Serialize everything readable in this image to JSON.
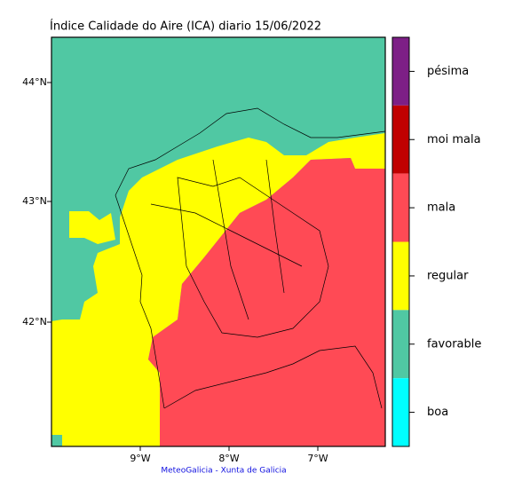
{
  "title": "Índice Calidade do Aire (ICA) diario 15/06/2022",
  "lat_labels": [
    "44°N",
    "43°N",
    "42°N"
  ],
  "lon_labels": [
    "9°W",
    "8°W",
    "7°W"
  ],
  "legend": [
    {
      "label": "pésima",
      "color": "#7d1f86"
    },
    {
      "label": "moi mala",
      "color": "#c00000"
    },
    {
      "label": "mala",
      "color": "#ff4a55"
    },
    {
      "label": "regular",
      "color": "#ffff00"
    },
    {
      "label": "favorable",
      "color": "#50c8a3"
    },
    {
      "label": "boa",
      "color": "#00ffff"
    }
  ],
  "credit": "MeteoGalicia - Xunta de Galicia"
}
